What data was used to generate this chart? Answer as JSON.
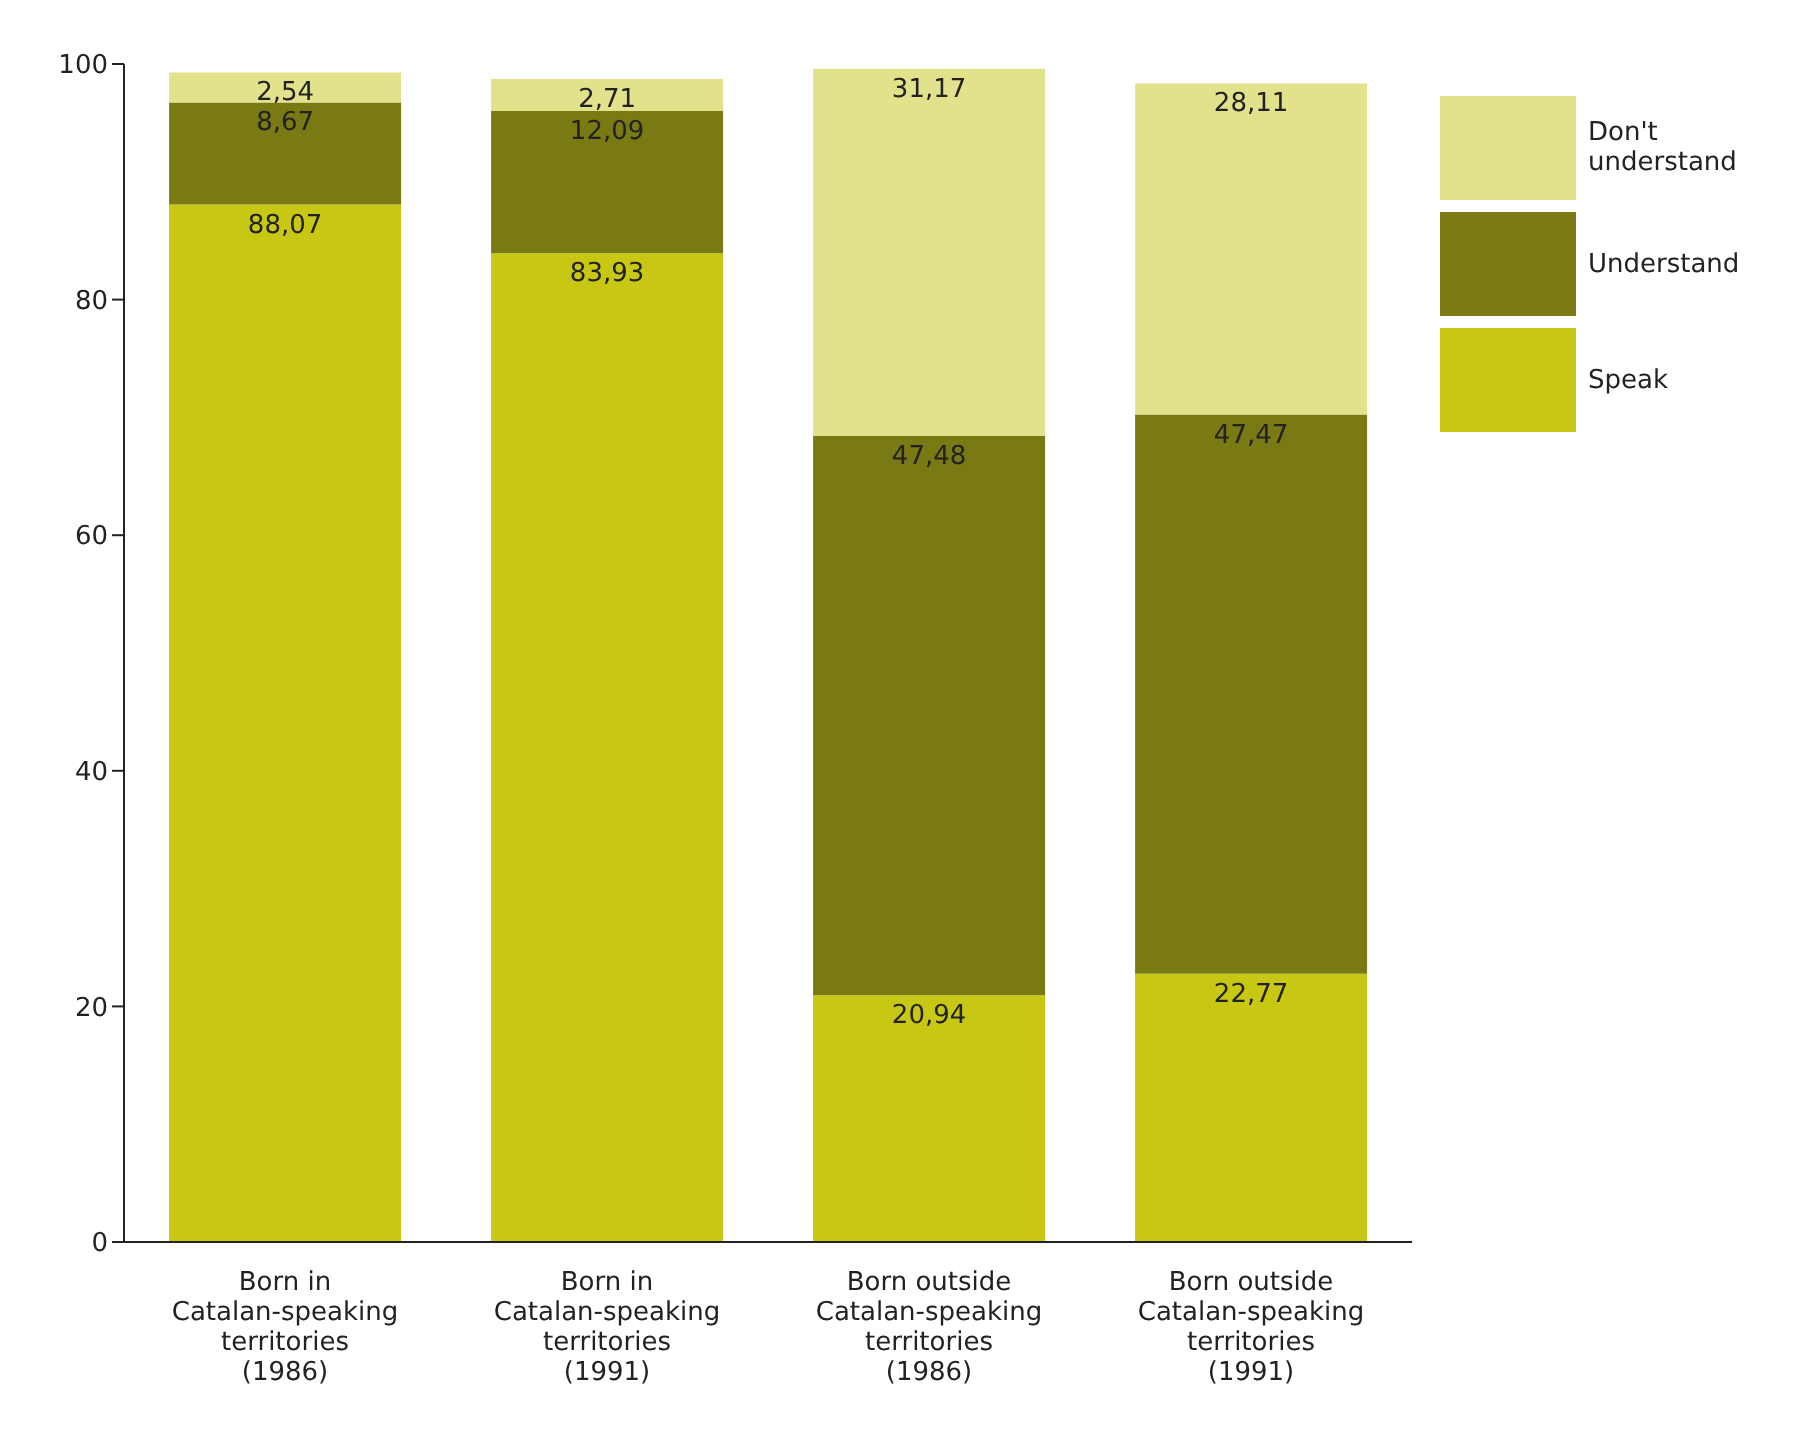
{
  "chart_data": {
    "type": "bar",
    "stacked": true,
    "legend": "right",
    "grid": false,
    "categories": [
      "Born in\nCatalan-speaking\nterritories\n(1986)",
      "Born in\nCatalan-speaking\nterritories\n(1991)",
      "Born outside\nCatalan-speaking\nterritories\n(1986)",
      "Born outside\nCatalan-speaking\nterritories\n(1991)"
    ],
    "ylim": [
      0,
      100
    ],
    "yticks": [
      0,
      20,
      40,
      60,
      80,
      100
    ],
    "series": [
      {
        "name": "Speak",
        "color": "#c8c814",
        "values": [
          88.07,
          83.93,
          20.94,
          22.77
        ],
        "value_labels": [
          "88,07",
          "83,93",
          "20,94",
          "22,77"
        ]
      },
      {
        "name": "Understand",
        "color": "#7a7a14",
        "values": [
          8.67,
          12.09,
          47.48,
          47.47
        ],
        "value_labels": [
          "8,67",
          "12,09",
          "47,48",
          "47,47"
        ]
      },
      {
        "name": "Don't understand",
        "color": "#e2e28c",
        "values": [
          2.54,
          2.71,
          31.17,
          28.11
        ],
        "value_labels": [
          "2,54",
          "2,71",
          "31,17",
          "28,11"
        ]
      }
    ]
  }
}
